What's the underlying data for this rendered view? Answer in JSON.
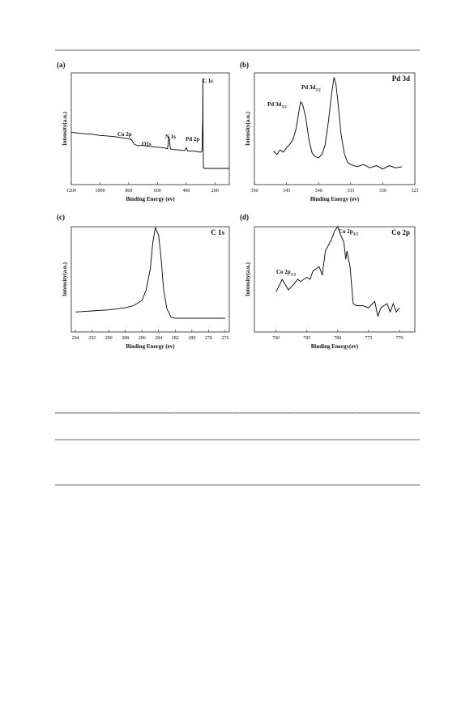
{
  "chart_data": [
    {
      "type": "line",
      "panel": "(a)",
      "xlabel": "Binding Energy (ev)",
      "ylabel": "Intensity(a.u.)",
      "xlim": [
        1200,
        100
      ],
      "xticks": [
        1200,
        1000,
        800,
        600,
        400,
        200
      ],
      "ylim": [
        0,
        100
      ],
      "color": "#000000",
      "x": [
        1200,
        1150,
        1100,
        1050,
        1000,
        950,
        900,
        850,
        800,
        780,
        760,
        740,
        700,
        650,
        600,
        560,
        540,
        530,
        520,
        510,
        500,
        450,
        410,
        400,
        390,
        350,
        300,
        290,
        285,
        284,
        283,
        280,
        270,
        250,
        200,
        150,
        100
      ],
      "values": [
        47,
        46,
        45.5,
        45,
        44,
        43.5,
        43,
        42,
        41,
        40,
        36,
        35,
        35,
        34,
        33.5,
        33,
        32.5,
        32,
        43,
        32,
        31.5,
        31,
        30.5,
        33,
        30,
        30,
        29,
        30,
        60,
        95,
        50,
        15,
        14.5,
        14.5,
        14.5,
        14.5,
        14.5
      ],
      "annotations": [
        {
          "text": "C 1s"
        },
        {
          "text": "Co 2p"
        },
        {
          "text": "O1s"
        },
        {
          "text": "N 1s"
        },
        {
          "text": "Pd 2p"
        }
      ]
    },
    {
      "type": "line",
      "panel": "(b)",
      "title": "Pd 3d",
      "xlabel": "Binding Energy (ev)",
      "ylabel": "Intensity(a.u.)",
      "xlim": [
        350,
        325
      ],
      "xticks": [
        350,
        345,
        340,
        335,
        330,
        325
      ],
      "ylim": [
        0,
        100
      ],
      "color": "#000000",
      "x": [
        347,
        346.5,
        346,
        345.5,
        345,
        344.5,
        344,
        343.5,
        343,
        342.8,
        342.5,
        342,
        341.5,
        341,
        340.5,
        340,
        339.5,
        339,
        338.5,
        338,
        337.6,
        337.3,
        337,
        336.5,
        336,
        335.5,
        335,
        334,
        333,
        332,
        331,
        330,
        329,
        328,
        327
      ],
      "values": [
        30,
        27,
        31,
        29,
        33,
        36,
        40,
        50,
        68,
        74,
        72,
        60,
        40,
        28,
        25,
        24,
        27,
        35,
        55,
        80,
        96,
        90,
        75,
        45,
        28,
        20,
        18,
        16,
        18,
        15,
        17,
        14,
        17,
        15,
        16
      ],
      "annotations": [
        {
          "text": "Pd 3d",
          "sub": "3/2"
        },
        {
          "text": "Pd 3d",
          "sub": "5/2"
        }
      ]
    },
    {
      "type": "line",
      "panel": "(c)",
      "title": "C 1s",
      "xlabel": "Binding Energy (ev)",
      "ylabel": "Intensity(a.u.)",
      "xlim": [
        294.5,
        275.5
      ],
      "xticks": [
        294,
        292,
        290,
        288,
        286,
        284,
        282,
        280,
        278,
        276
      ],
      "ylim": [
        0,
        100
      ],
      "color": "#000000",
      "x": [
        294,
        292,
        290,
        288,
        287,
        286,
        285.5,
        285,
        284.7,
        284.4,
        284,
        283.7,
        283.4,
        283,
        282.5,
        282,
        280,
        278,
        276
      ],
      "values": [
        19,
        20,
        21,
        23,
        25,
        30,
        40,
        60,
        85,
        99,
        92,
        70,
        40,
        22,
        14,
        13,
        13,
        13,
        13
      ],
      "annotations": []
    },
    {
      "type": "line",
      "panel": "(d)",
      "title": "Co 2p",
      "xlabel": "Binding Energy(ev)",
      "ylabel": "Intensity(a.u.)",
      "xlim": [
        793.5,
        767.5
      ],
      "xticks": [
        790,
        785,
        780,
        775,
        770
      ],
      "ylim": [
        0,
        100
      ],
      "color": "#000000",
      "x": [
        790,
        789,
        788,
        787,
        786.5,
        786,
        785,
        784.5,
        784,
        783,
        782.5,
        782,
        781,
        780.5,
        780,
        779.5,
        779,
        778.7,
        778.5,
        778,
        777.5,
        777,
        776,
        775,
        774,
        773.5,
        773,
        772,
        771.5,
        771,
        770.5,
        770
      ],
      "values": [
        38,
        50,
        40,
        46,
        50,
        48,
        52,
        50,
        58,
        62,
        54,
        77,
        88,
        96,
        100,
        92,
        85,
        69,
        77,
        62,
        27,
        25,
        25,
        23,
        29,
        15,
        23,
        27,
        19,
        27,
        19,
        23
      ],
      "annotations": [
        {
          "text": "Co 2p",
          "sub": "3/2"
        },
        {
          "text": "Co 2p",
          "sub": "1/2"
        }
      ]
    }
  ]
}
